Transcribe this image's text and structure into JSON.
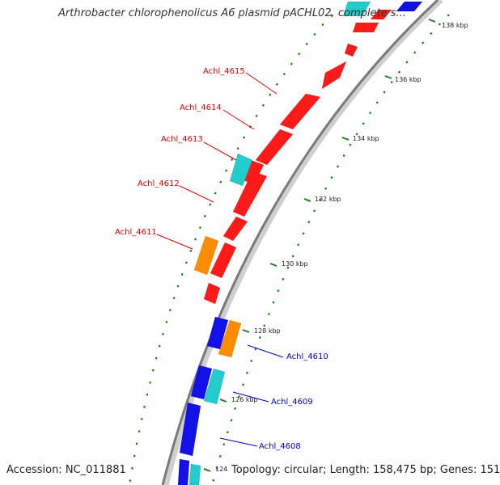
{
  "title": "Arthrobacter chlorophenolicus A6 plasmid pACHL02, complete s...",
  "footer": {
    "accession": "Accession: NC_011881",
    "topology": "Topology: circular; Length: 158,475 bp; Genes: 151"
  },
  "colors": {
    "backbone": "#7a7a7a",
    "ticks": "#1e7f1e",
    "red_gene": "#ff1a1a",
    "blue_gene": "#1111e8",
    "cyan_gene": "#22cccc",
    "orange_gene": "#ff8c00",
    "red_label": "#dd0000",
    "blue_label": "#0000cc"
  },
  "tick_labels": [
    {
      "label": "138 kbp"
    },
    {
      "label": "136 kbp"
    },
    {
      "label": "134 kbp"
    },
    {
      "label": "132 kbp"
    },
    {
      "label": "130 kbp"
    },
    {
      "label": "128 kbp"
    },
    {
      "label": "126 kbp"
    },
    {
      "label": "124"
    }
  ],
  "gene_labels": [
    {
      "label": "Achl_4615",
      "color": "red"
    },
    {
      "label": "Achl_4614",
      "color": "red"
    },
    {
      "label": "Achl_4613",
      "color": "red"
    },
    {
      "label": "Achl_4612",
      "color": "red"
    },
    {
      "label": "Achl_4611",
      "color": "red"
    },
    {
      "label": "Achl_4610",
      "color": "blue"
    },
    {
      "label": "Achl_4609",
      "color": "blue"
    },
    {
      "label": "Achl_4608",
      "color": "blue"
    }
  ]
}
